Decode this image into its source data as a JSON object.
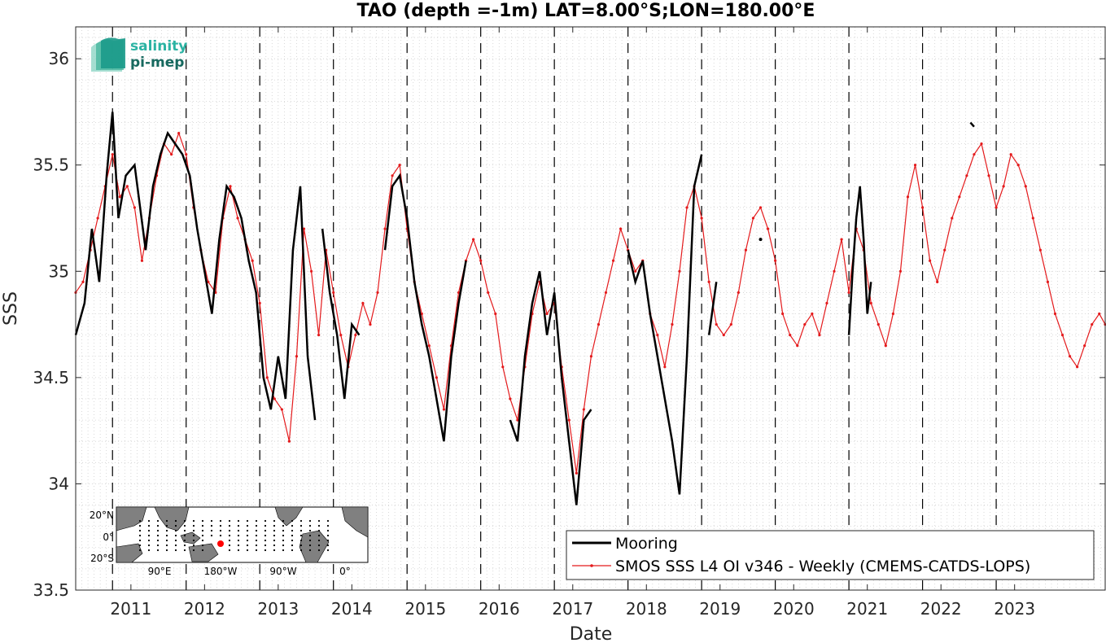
{
  "logo": {
    "line1": "salinity",
    "line2": "pi-mep"
  },
  "chart_data": {
    "type": "line",
    "title": "TAO (depth =-1m) LAT=8.00°S;LON=180.00°E",
    "xlabel": "Date",
    "ylabel": "SSS",
    "xlim": [
      2010.5,
      2024.48
    ],
    "ylim": [
      33.5,
      36.15
    ],
    "yticks": [
      33.5,
      34,
      34.5,
      35,
      35.5,
      36
    ],
    "xticks": [
      {
        "label": "2011",
        "x": 2011.25
      },
      {
        "label": "2012",
        "x": 2012.25
      },
      {
        "label": "2013",
        "x": 2013.25
      },
      {
        "label": "2014",
        "x": 2014.25
      },
      {
        "label": "2015",
        "x": 2015.25
      },
      {
        "label": "2016",
        "x": 2016.25
      },
      {
        "label": "2017",
        "x": 2017.25
      },
      {
        "label": "2018",
        "x": 2018.25
      },
      {
        "label": "2019",
        "x": 2019.25
      },
      {
        "label": "2020",
        "x": 2020.25
      },
      {
        "label": "2021",
        "x": 2021.25
      },
      {
        "label": "2022",
        "x": 2022.25
      },
      {
        "label": "2023",
        "x": 2023.25
      }
    ],
    "year_lines": [
      2011,
      2012,
      2013,
      2014,
      2015,
      2016,
      2017,
      2018,
      2019,
      2020,
      2021,
      2022,
      2023
    ],
    "grid": "minor dotted",
    "legend_position": "bottom-right",
    "series": [
      {
        "name": "Mooring",
        "color": "#000000",
        "segments": [
          [
            [
              2010.5,
              34.7
            ],
            [
              2010.62,
              34.85
            ],
            [
              2010.72,
              35.2
            ],
            [
              2010.82,
              34.95
            ],
            [
              2010.92,
              35.45
            ],
            [
              2011.0,
              35.75
            ],
            [
              2011.08,
              35.25
            ],
            [
              2011.18,
              35.45
            ],
            [
              2011.3,
              35.5
            ],
            [
              2011.45,
              35.1
            ],
            [
              2011.55,
              35.4
            ],
            [
              2011.65,
              35.55
            ],
            [
              2011.75,
              35.65
            ],
            [
              2011.85,
              35.6
            ],
            [
              2011.95,
              35.55
            ],
            [
              2012.05,
              35.45
            ],
            [
              2012.15,
              35.2
            ],
            [
              2012.25,
              35.0
            ],
            [
              2012.35,
              34.8
            ],
            [
              2012.45,
              35.15
            ],
            [
              2012.55,
              35.4
            ],
            [
              2012.65,
              35.35
            ],
            [
              2012.75,
              35.25
            ],
            [
              2012.85,
              35.05
            ],
            [
              2012.95,
              34.9
            ],
            [
              2013.05,
              34.5
            ],
            [
              2013.15,
              34.35
            ],
            [
              2013.25,
              34.6
            ],
            [
              2013.35,
              34.4
            ],
            [
              2013.45,
              35.1
            ],
            [
              2013.55,
              35.4
            ],
            [
              2013.65,
              34.6
            ],
            [
              2013.75,
              34.3
            ]
          ],
          [
            [
              2013.85,
              35.2
            ],
            [
              2013.95,
              34.9
            ],
            [
              2014.05,
              34.7
            ],
            [
              2014.15,
              34.4
            ],
            [
              2014.25,
              34.75
            ],
            [
              2014.35,
              34.7
            ]
          ],
          [
            [
              2014.7,
              35.1
            ],
            [
              2014.8,
              35.4
            ],
            [
              2014.9,
              35.45
            ],
            [
              2015.0,
              35.25
            ],
            [
              2015.1,
              34.95
            ],
            [
              2015.2,
              34.75
            ],
            [
              2015.3,
              34.6
            ],
            [
              2015.4,
              34.4
            ],
            [
              2015.5,
              34.2
            ],
            [
              2015.6,
              34.6
            ],
            [
              2015.7,
              34.85
            ],
            [
              2015.8,
              35.05
            ]
          ],
          [
            [
              2016.4,
              34.3
            ],
            [
              2016.5,
              34.2
            ],
            [
              2016.6,
              34.6
            ],
            [
              2016.7,
              34.85
            ],
            [
              2016.8,
              35.0
            ],
            [
              2016.9,
              34.7
            ],
            [
              2017.0,
              34.9
            ],
            [
              2017.1,
              34.5
            ],
            [
              2017.2,
              34.2
            ],
            [
              2017.3,
              33.9
            ],
            [
              2017.4,
              34.3
            ],
            [
              2017.5,
              34.35
            ]
          ],
          [
            [
              2018.0,
              35.1
            ],
            [
              2018.1,
              34.95
            ],
            [
              2018.2,
              35.05
            ],
            [
              2018.3,
              34.8
            ],
            [
              2018.4,
              34.6
            ],
            [
              2018.5,
              34.4
            ],
            [
              2018.6,
              34.2
            ],
            [
              2018.7,
              33.95
            ],
            [
              2018.8,
              34.6
            ],
            [
              2018.9,
              35.4
            ],
            [
              2019.0,
              35.55
            ]
          ],
          [
            [
              2019.1,
              34.7
            ],
            [
              2019.2,
              34.95
            ]
          ],
          [
            [
              2019.8,
              35.15
            ]
          ],
          [
            [
              2021.0,
              34.7
            ],
            [
              2021.05,
              35.0
            ],
            [
              2021.1,
              35.25
            ],
            [
              2021.15,
              35.4
            ],
            [
              2021.2,
              35.15
            ],
            [
              2021.25,
              34.8
            ],
            [
              2021.3,
              34.95
            ]
          ],
          [
            [
              2022.65,
              35.7
            ],
            [
              2022.7,
              35.68
            ]
          ]
        ]
      },
      {
        "name": "SMOS SSS L4 OI v346 - Weekly (CMEMS-CATDS-LOPS)",
        "color": "#e41a1c",
        "points": [
          [
            2010.5,
            34.9
          ],
          [
            2010.6,
            34.95
          ],
          [
            2010.7,
            35.1
          ],
          [
            2010.8,
            35.25
          ],
          [
            2010.9,
            35.4
          ],
          [
            2011.0,
            35.55
          ],
          [
            2011.1,
            35.35
          ],
          [
            2011.2,
            35.4
          ],
          [
            2011.3,
            35.3
          ],
          [
            2011.4,
            35.05
          ],
          [
            2011.5,
            35.25
          ],
          [
            2011.6,
            35.45
          ],
          [
            2011.7,
            35.6
          ],
          [
            2011.8,
            35.55
          ],
          [
            2011.9,
            35.65
          ],
          [
            2012.0,
            35.55
          ],
          [
            2012.1,
            35.3
          ],
          [
            2012.2,
            35.1
          ],
          [
            2012.3,
            34.95
          ],
          [
            2012.4,
            34.9
          ],
          [
            2012.5,
            35.25
          ],
          [
            2012.6,
            35.4
          ],
          [
            2012.7,
            35.25
          ],
          [
            2012.8,
            35.15
          ],
          [
            2012.9,
            35.05
          ],
          [
            2013.0,
            34.85
          ],
          [
            2013.1,
            34.5
          ],
          [
            2013.2,
            34.4
          ],
          [
            2013.3,
            34.35
          ],
          [
            2013.4,
            34.2
          ],
          [
            2013.5,
            34.6
          ],
          [
            2013.6,
            35.2
          ],
          [
            2013.7,
            35.0
          ],
          [
            2013.8,
            34.7
          ],
          [
            2013.9,
            35.1
          ],
          [
            2014.0,
            34.9
          ],
          [
            2014.1,
            34.7
          ],
          [
            2014.2,
            34.55
          ],
          [
            2014.3,
            34.7
          ],
          [
            2014.4,
            34.85
          ],
          [
            2014.5,
            34.75
          ],
          [
            2014.6,
            34.9
          ],
          [
            2014.7,
            35.2
          ],
          [
            2014.8,
            35.45
          ],
          [
            2014.9,
            35.5
          ],
          [
            2015.0,
            35.2
          ],
          [
            2015.1,
            34.95
          ],
          [
            2015.2,
            34.8
          ],
          [
            2015.3,
            34.65
          ],
          [
            2015.4,
            34.5
          ],
          [
            2015.5,
            34.35
          ],
          [
            2015.6,
            34.65
          ],
          [
            2015.7,
            34.9
          ],
          [
            2015.8,
            35.05
          ],
          [
            2015.9,
            35.15
          ],
          [
            2016.0,
            35.05
          ],
          [
            2016.1,
            34.9
          ],
          [
            2016.2,
            34.8
          ],
          [
            2016.3,
            34.55
          ],
          [
            2016.4,
            34.4
          ],
          [
            2016.5,
            34.3
          ],
          [
            2016.6,
            34.55
          ],
          [
            2016.7,
            34.8
          ],
          [
            2016.8,
            34.95
          ],
          [
            2016.9,
            34.8
          ],
          [
            2017.0,
            34.85
          ],
          [
            2017.1,
            34.55
          ],
          [
            2017.2,
            34.3
          ],
          [
            2017.3,
            34.05
          ],
          [
            2017.4,
            34.35
          ],
          [
            2017.5,
            34.6
          ],
          [
            2017.6,
            34.75
          ],
          [
            2017.7,
            34.9
          ],
          [
            2017.8,
            35.05
          ],
          [
            2017.9,
            35.2
          ],
          [
            2018.0,
            35.1
          ],
          [
            2018.1,
            35.0
          ],
          [
            2018.2,
            35.05
          ],
          [
            2018.3,
            34.8
          ],
          [
            2018.4,
            34.7
          ],
          [
            2018.5,
            34.55
          ],
          [
            2018.6,
            34.75
          ],
          [
            2018.7,
            35.0
          ],
          [
            2018.8,
            35.3
          ],
          [
            2018.9,
            35.4
          ],
          [
            2019.0,
            35.25
          ],
          [
            2019.1,
            34.95
          ],
          [
            2019.2,
            34.75
          ],
          [
            2019.3,
            34.7
          ],
          [
            2019.4,
            34.75
          ],
          [
            2019.5,
            34.9
          ],
          [
            2019.6,
            35.1
          ],
          [
            2019.7,
            35.25
          ],
          [
            2019.8,
            35.3
          ],
          [
            2019.9,
            35.2
          ],
          [
            2020.0,
            35.05
          ],
          [
            2020.1,
            34.8
          ],
          [
            2020.2,
            34.7
          ],
          [
            2020.3,
            34.65
          ],
          [
            2020.4,
            34.75
          ],
          [
            2020.5,
            34.8
          ],
          [
            2020.6,
            34.7
          ],
          [
            2020.7,
            34.85
          ],
          [
            2020.8,
            35.0
          ],
          [
            2020.9,
            35.15
          ],
          [
            2021.0,
            34.9
          ],
          [
            2021.1,
            35.2
          ],
          [
            2021.2,
            35.1
          ],
          [
            2021.3,
            34.85
          ],
          [
            2021.4,
            34.75
          ],
          [
            2021.5,
            34.65
          ],
          [
            2021.6,
            34.8
          ],
          [
            2021.7,
            35.0
          ],
          [
            2021.8,
            35.35
          ],
          [
            2021.9,
            35.5
          ],
          [
            2022.0,
            35.3
          ],
          [
            2022.1,
            35.05
          ],
          [
            2022.2,
            34.95
          ],
          [
            2022.3,
            35.1
          ],
          [
            2022.4,
            35.25
          ],
          [
            2022.5,
            35.35
          ],
          [
            2022.6,
            35.45
          ],
          [
            2022.7,
            35.55
          ],
          [
            2022.8,
            35.6
          ],
          [
            2022.9,
            35.45
          ],
          [
            2023.0,
            35.3
          ],
          [
            2023.1,
            35.4
          ],
          [
            2023.2,
            35.55
          ],
          [
            2023.3,
            35.5
          ],
          [
            2023.4,
            35.4
          ],
          [
            2023.5,
            35.25
          ],
          [
            2023.6,
            35.1
          ],
          [
            2023.7,
            34.95
          ],
          [
            2023.8,
            34.8
          ],
          [
            2023.9,
            34.7
          ],
          [
            2024.0,
            34.6
          ],
          [
            2024.1,
            34.55
          ],
          [
            2024.2,
            34.65
          ],
          [
            2024.3,
            34.75
          ],
          [
            2024.4,
            34.8
          ],
          [
            2024.48,
            34.75
          ]
        ]
      }
    ]
  },
  "inset_map": {
    "ylabels": [
      "20°N",
      "0°",
      "20°S"
    ],
    "xlabels": [
      "90°E",
      "180°W",
      "90°W",
      "0°"
    ],
    "land_color": "#808080",
    "ocean_color": "#ffffff",
    "marker_color": "#ff0000"
  }
}
